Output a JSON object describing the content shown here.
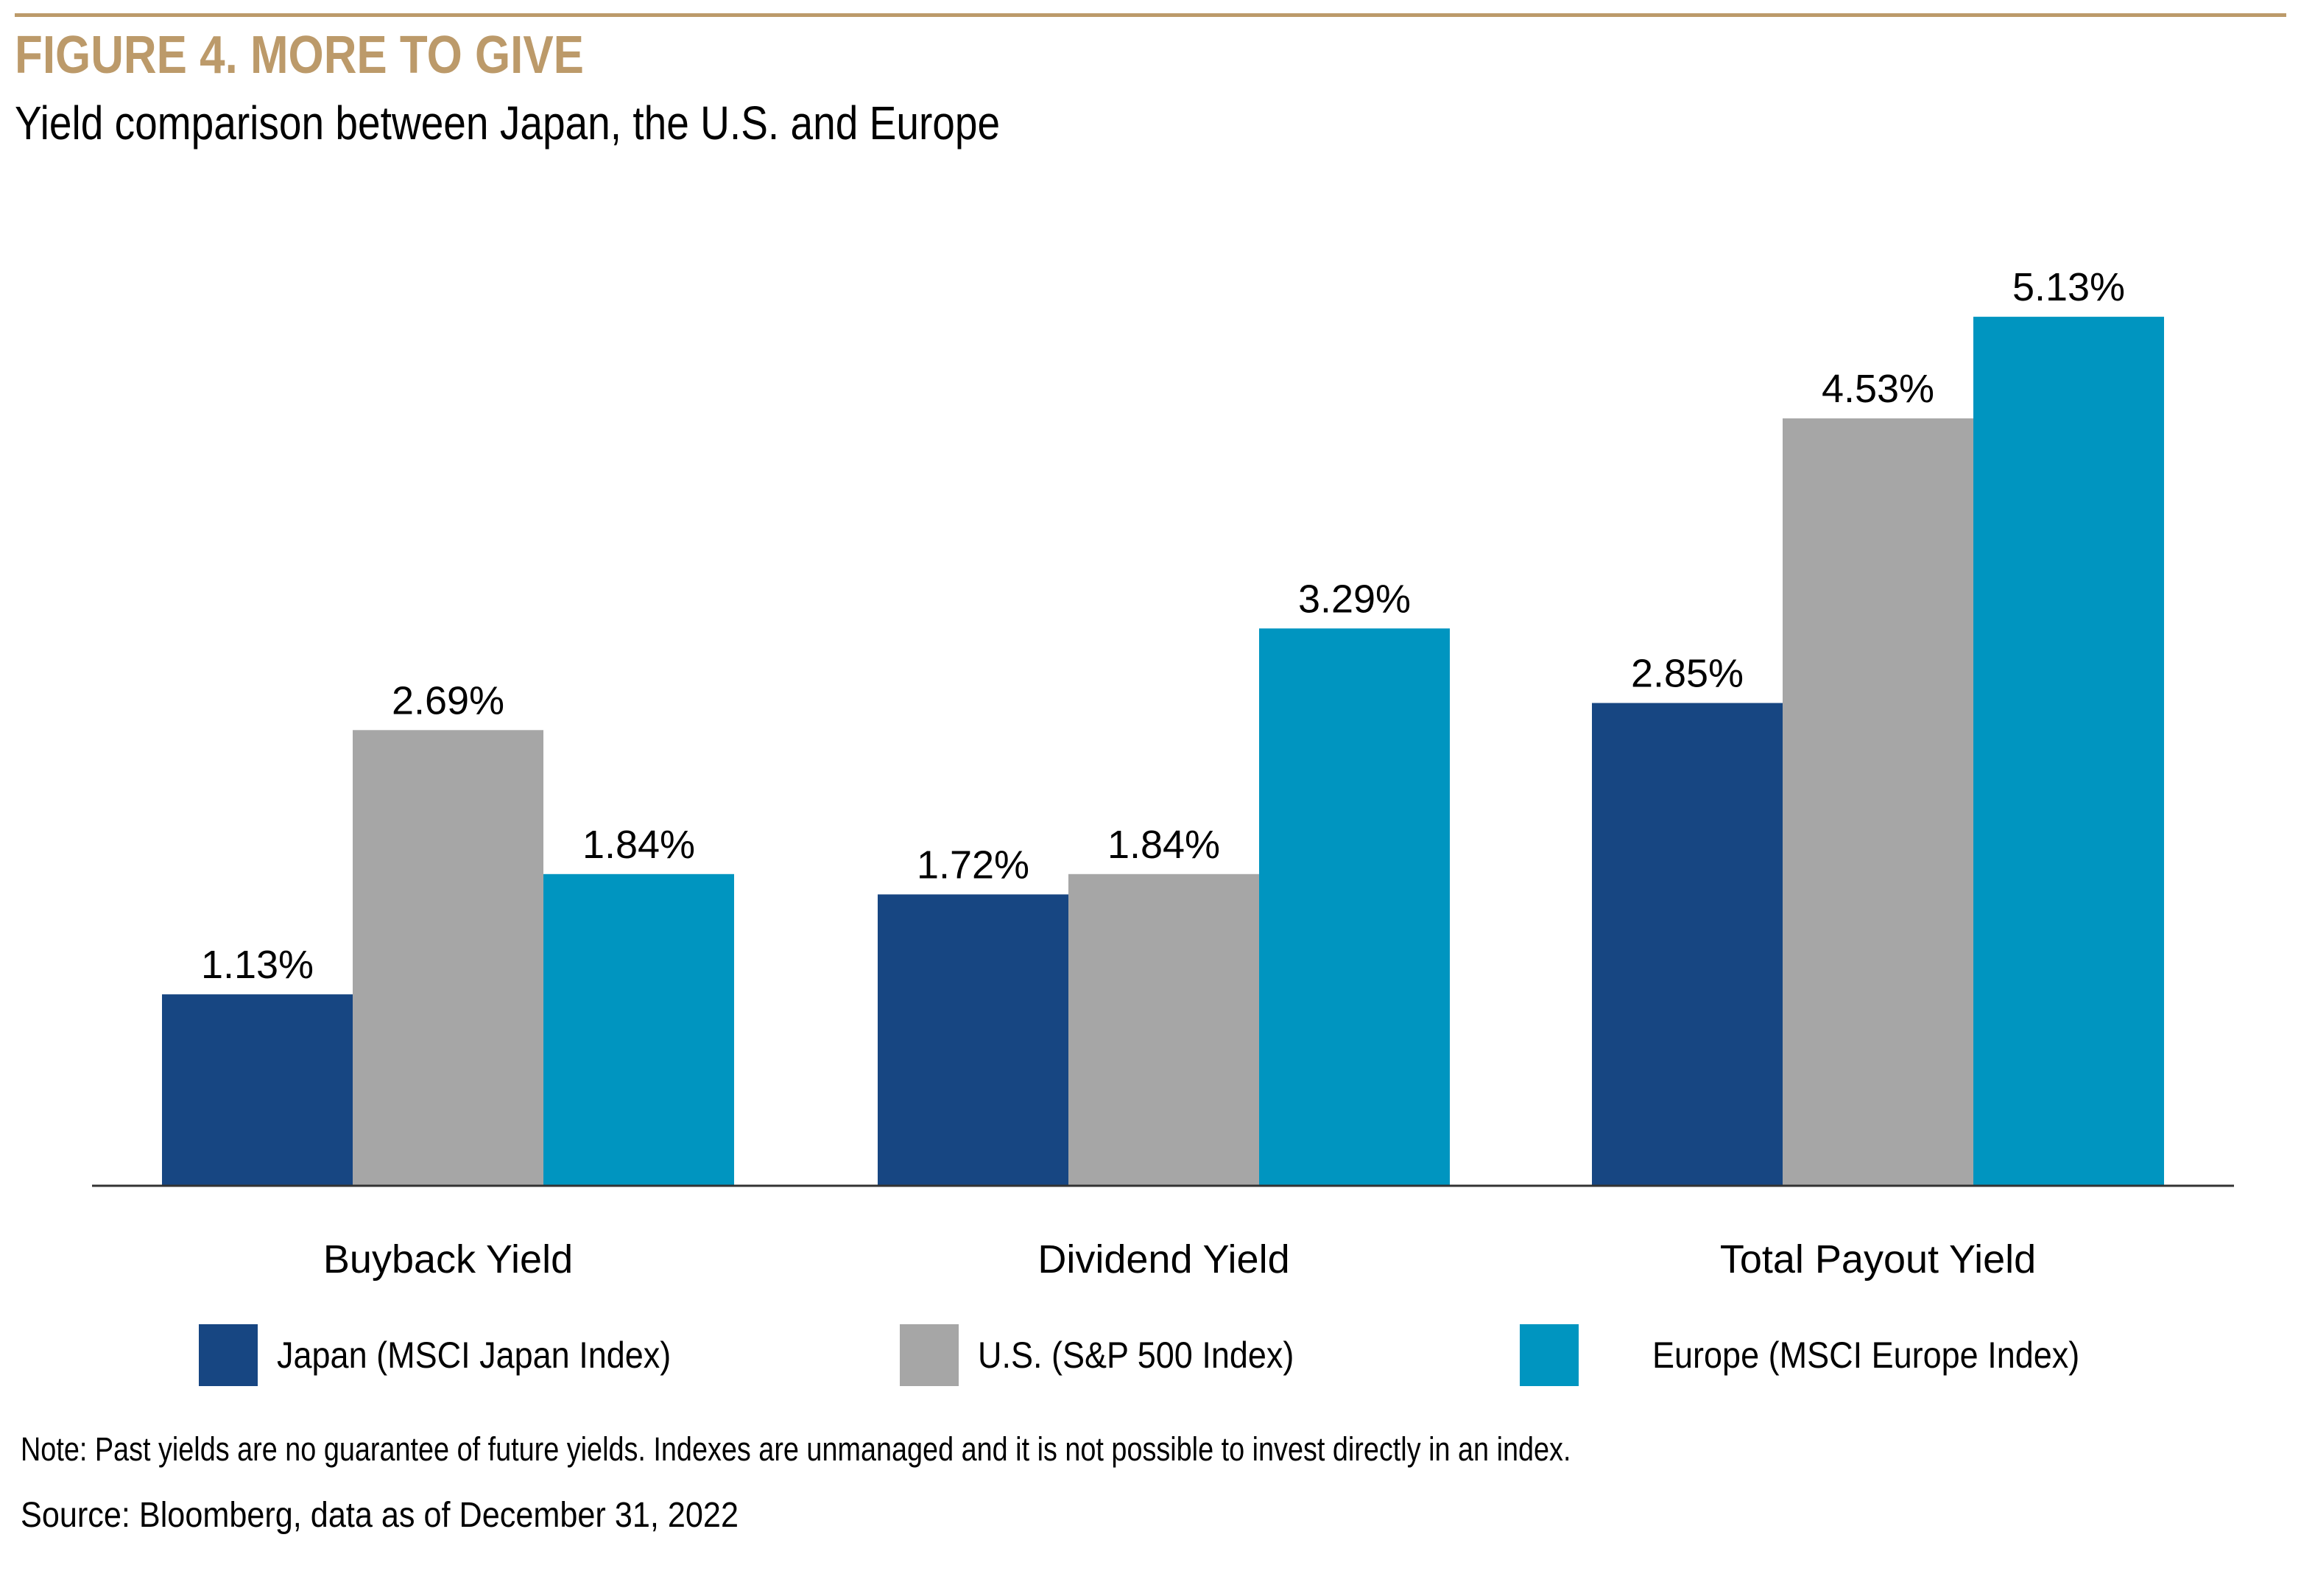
{
  "header": {
    "figure_title": "FIGURE 4. MORE TO GIVE",
    "subtitle": "Yield comparison between Japan, the U.S. and Europe"
  },
  "colors": {
    "accent_gold": "#bc9a6a",
    "japan": "#174682",
    "us": "#a6a6a6",
    "europe": "#0095c0",
    "axis": "#333333"
  },
  "chart_data": {
    "type": "bar",
    "title": "FIGURE 4. MORE TO GIVE",
    "subtitle": "Yield comparison between Japan, the U.S. and Europe",
    "xlabel": "",
    "ylabel": "",
    "ylim": [
      0,
      5.5
    ],
    "grid": false,
    "legend_position": "bottom",
    "categories": [
      "Buyback Yield",
      "Dividend Yield",
      "Total Payout Yield"
    ],
    "series": [
      {
        "name": "Japan (MSCI Japan Index)",
        "color": "#174682",
        "values": [
          1.13,
          1.72,
          2.85
        ],
        "labels": [
          "1.13%",
          "1.72%",
          "2.85%"
        ]
      },
      {
        "name": "U.S. (S&P 500 Index)",
        "color": "#a6a6a6",
        "values": [
          2.69,
          1.84,
          4.53
        ],
        "labels": [
          "2.69%",
          "1.84%",
          "4.53%"
        ]
      },
      {
        "name": "Europe (MSCI Europe Index)",
        "color": "#0095c0",
        "values": [
          1.84,
          3.29,
          5.13
        ],
        "labels": [
          "1.84%",
          "3.29%",
          "5.13%"
        ]
      }
    ]
  },
  "legend": {
    "items": [
      {
        "label": "Japan (MSCI Japan Index)",
        "color": "#174682"
      },
      {
        "label": "U.S. (S&P 500 Index)",
        "color": "#a6a6a6"
      },
      {
        "label": "Europe (MSCI Europe Index)",
        "color": "#0095c0"
      }
    ]
  },
  "footer": {
    "note": "Note: Past yields are no guarantee of future yields. Indexes are unmanaged and it is not possible to invest directly in an index.",
    "source": "Source: Bloomberg, data as of December 31, 2022"
  }
}
